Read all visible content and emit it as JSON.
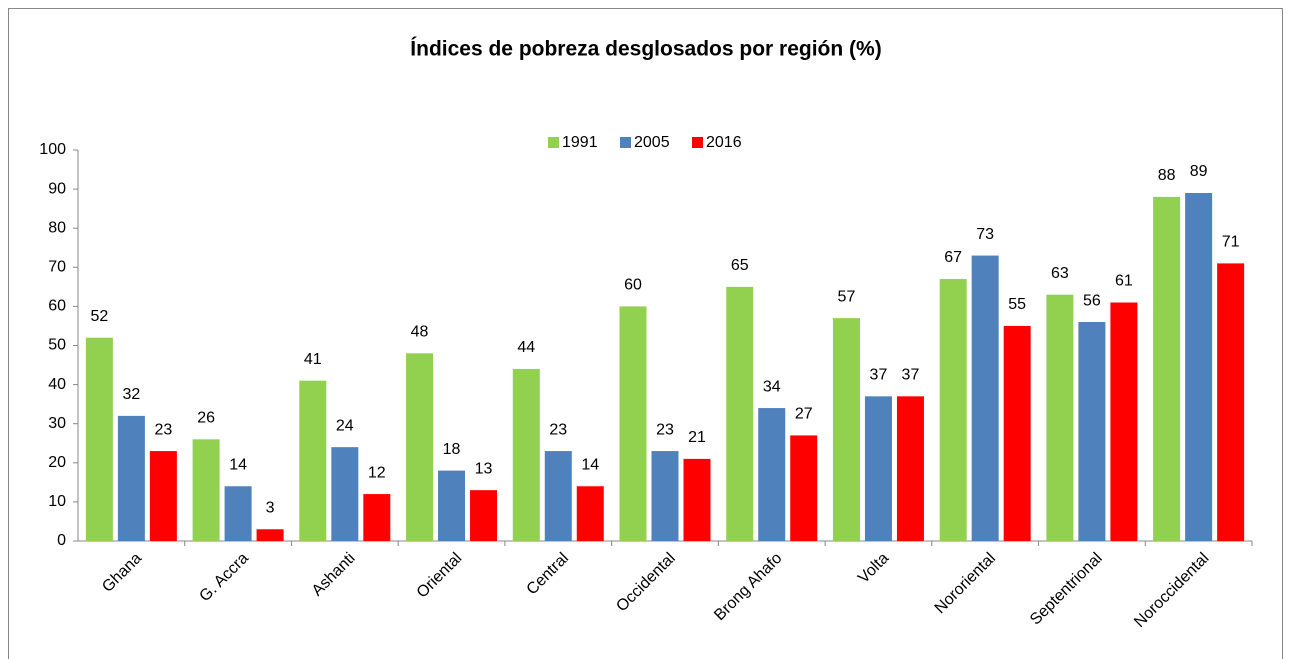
{
  "chart_data": {
    "type": "bar",
    "title": "Índices de pobreza desglosados por región (%)",
    "categories": [
      "Ghana",
      "G. Accra",
      "Ashanti",
      "Oriental",
      "Central",
      "Occidental",
      "Brong Ahafo",
      "Volta",
      "Nororiental",
      "Septentrional",
      "Noroccidental"
    ],
    "series": [
      {
        "name": "1991",
        "color": "#92d050",
        "values": [
          52,
          26,
          41,
          48,
          44,
          60,
          65,
          57,
          67,
          63,
          88
        ]
      },
      {
        "name": "2005",
        "color": "#4f81bd",
        "values": [
          32,
          14,
          24,
          18,
          23,
          23,
          34,
          37,
          73,
          56,
          89
        ]
      },
      {
        "name": "2016",
        "color": "#ff0000",
        "values": [
          23,
          3,
          12,
          13,
          14,
          21,
          27,
          37,
          55,
          61,
          71
        ]
      }
    ],
    "ylim": [
      0,
      100
    ],
    "yticks": [
      0,
      10,
      20,
      30,
      40,
      50,
      60,
      70,
      80,
      90,
      100
    ],
    "grid": false,
    "legend": "top"
  }
}
